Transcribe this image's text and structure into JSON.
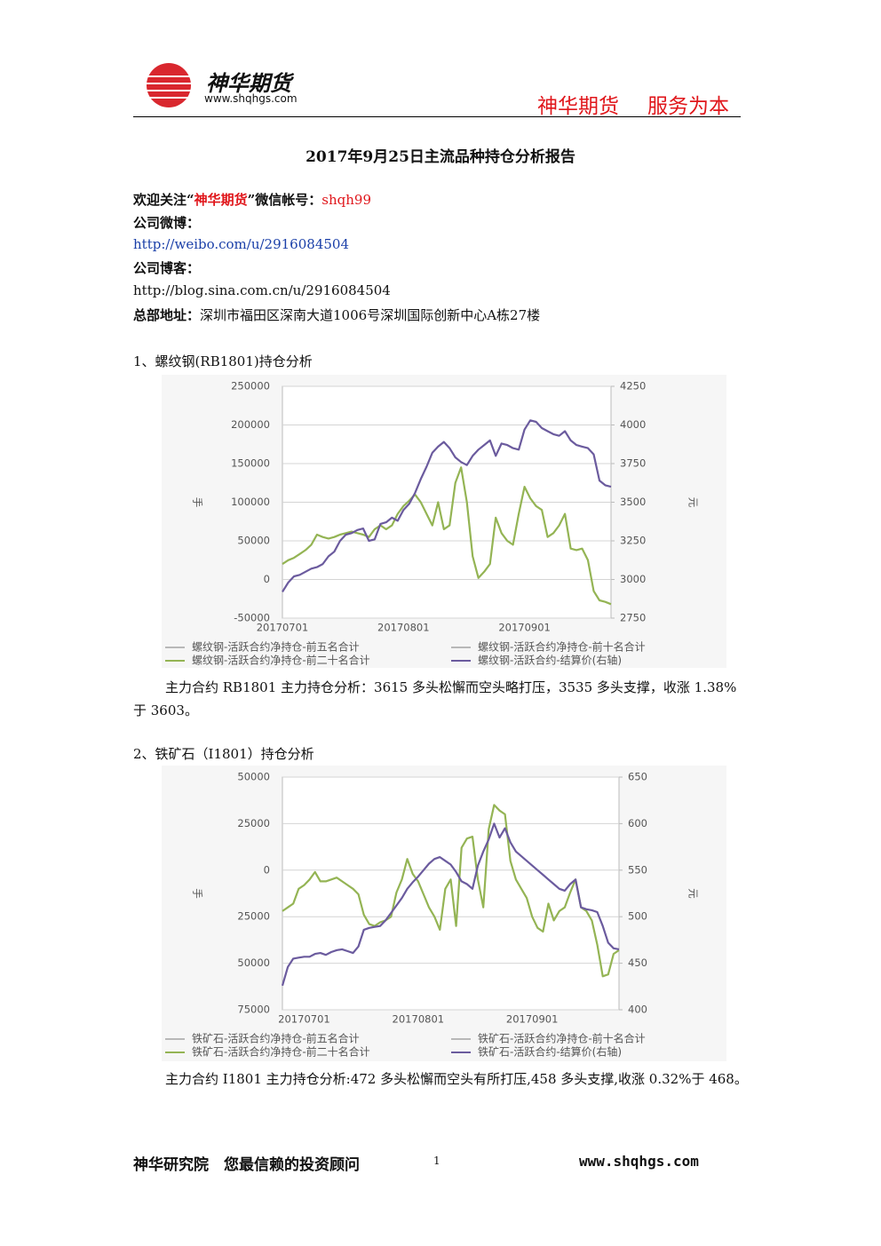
{
  "header": {
    "logo_name": "神华期货",
    "logo_url": "www.shqhgs.com",
    "slogan_left": "神华期货",
    "slogan_right": "服务为本"
  },
  "title": "2017年9月25日主流品种持仓分析报告",
  "contact": {
    "welcome_open": "欢迎关注“",
    "welcome_name": "神华期货",
    "welcome_close": "”微信帐号：",
    "wechat_id": "shqh99",
    "weibo_label": "公司微博：",
    "weibo_url": "http://weibo.com/u/2916084504",
    "blog_label": "公司博客：",
    "blog_url": "http://blog.sina.com.cn/u/2916084504",
    "address_label": "总部地址：",
    "address": "深圳市福田区深南大道1006号深圳国际创新中心A栋27楼"
  },
  "sections": [
    {
      "heading": "1、螺纹钢(RB1801)持仓分析",
      "analysis": "主力合约 RB1801 主力持仓分析：3615 多头松懈而空头略打压，3535 多头支撑，收涨 1.38%于 3603。"
    },
    {
      "heading": "2、铁矿石（I1801）持仓分析",
      "analysis": "主力合约 I1801 主力持仓分析:472 多头松懈而空头有所打压,458 多头支撑,收涨 0.32%于 468。"
    }
  ],
  "footer": {
    "left": "神华研究院　您最信赖的投资顾问",
    "page": "1",
    "right": "www.shqhgs.com"
  },
  "chart_data": [
    {
      "type": "line",
      "y_label": "手",
      "y2_label": "元",
      "grid": true,
      "legend": "bottom",
      "categories": [
        "20170701",
        null,
        null,
        null,
        null,
        null,
        null,
        null,
        null,
        null,
        null,
        null,
        null,
        null,
        null,
        null,
        null,
        null,
        null,
        null,
        null,
        "20170801",
        null,
        null,
        null,
        null,
        null,
        null,
        null,
        null,
        null,
        null,
        null,
        null,
        null,
        null,
        null,
        null,
        null,
        null,
        null,
        null,
        "20170901",
        null,
        null,
        null,
        null,
        null,
        null,
        null,
        null,
        null,
        null,
        null,
        null,
        null,
        null,
        null
      ],
      "ylim": [
        -50000,
        250000
      ],
      "yticks": [
        -50000,
        0,
        50000,
        100000,
        150000,
        200000,
        250000
      ],
      "y2lim": [
        2750,
        4250
      ],
      "y2ticks": [
        2750,
        3000,
        3250,
        3500,
        3750,
        4000,
        4250
      ],
      "series": [
        {
          "name": "螺纹钢-活跃合约净持仓-前五名合计",
          "color": "#b8b8b8",
          "values": [
            null,
            null,
            null,
            null,
            null,
            null,
            null,
            null,
            null,
            null,
            null,
            null,
            null,
            null,
            null,
            null,
            null,
            null,
            null,
            null,
            null,
            null,
            null,
            null,
            null,
            null,
            null,
            null,
            null,
            null,
            null,
            null,
            null,
            null,
            null,
            null,
            null,
            null,
            null,
            null,
            null,
            null,
            null,
            null,
            null,
            null,
            null,
            null,
            null,
            null,
            null,
            null,
            null,
            null,
            null,
            null,
            null,
            null
          ]
        },
        {
          "name": "螺纹钢-活跃合约净持仓-前十名合计",
          "color": "#b8b8b8",
          "values": [
            null,
            null,
            null,
            null,
            null,
            null,
            null,
            null,
            null,
            null,
            null,
            null,
            null,
            null,
            null,
            null,
            null,
            null,
            null,
            null,
            null,
            null,
            null,
            null,
            null,
            null,
            null,
            null,
            null,
            null,
            null,
            null,
            null,
            null,
            null,
            null,
            null,
            null,
            null,
            null,
            null,
            null,
            null,
            null,
            null,
            null,
            null,
            null,
            null,
            null,
            null,
            null,
            null,
            null,
            null,
            null,
            null,
            null
          ]
        },
        {
          "name": "螺纹钢-活跃合约净持仓-前二十名合计",
          "color": "#94b454",
          "values": [
            20000,
            25000,
            28000,
            33000,
            38000,
            45000,
            58000,
            55000,
            53000,
            55000,
            58000,
            60000,
            62000,
            60000,
            58000,
            55000,
            65000,
            70000,
            65000,
            70000,
            85000,
            95000,
            102000,
            110000,
            100000,
            85000,
            70000,
            100000,
            65000,
            70000,
            125000,
            145000,
            100000,
            30000,
            2000,
            10000,
            20000,
            80000,
            60000,
            50000,
            45000,
            85000,
            120000,
            105000,
            95000,
            90000,
            55000,
            60000,
            70000,
            85000,
            40000,
            38000,
            40000,
            25000,
            -15000,
            -27000,
            -29000,
            -32000
          ]
        },
        {
          "name": "螺纹钢-活跃合约-结算价(右轴)",
          "color": "#6b5b9e",
          "axis": "y2",
          "values": [
            2920,
            2980,
            3020,
            3030,
            3050,
            3070,
            3080,
            3100,
            3150,
            3180,
            3250,
            3290,
            3300,
            3320,
            3330,
            3250,
            3260,
            3360,
            3370,
            3400,
            3380,
            3450,
            3490,
            3560,
            3650,
            3730,
            3820,
            3860,
            3890,
            3850,
            3790,
            3760,
            3740,
            3800,
            3840,
            3870,
            3900,
            3800,
            3880,
            3870,
            3850,
            3840,
            3970,
            4030,
            4020,
            3980,
            3960,
            3940,
            3930,
            3960,
            3900,
            3870,
            3860,
            3850,
            3810,
            3640,
            3610,
            3600
          ]
        }
      ]
    },
    {
      "type": "line",
      "y_label": "手",
      "y2_label": "元",
      "grid": true,
      "legend": "bottom",
      "categories": [
        null,
        null,
        null,
        null,
        "20170701",
        null,
        null,
        null,
        null,
        null,
        null,
        null,
        null,
        null,
        null,
        null,
        null,
        null,
        null,
        null,
        null,
        null,
        null,
        null,
        null,
        "20170801",
        null,
        null,
        null,
        null,
        null,
        null,
        null,
        null,
        null,
        null,
        null,
        null,
        null,
        null,
        null,
        null,
        null,
        null,
        null,
        null,
        "20170901",
        null,
        null,
        null,
        null,
        null,
        null,
        null,
        null,
        null,
        null,
        null,
        null,
        null,
        null,
        null,
        null
      ],
      "ylim": [
        -75000,
        50000
      ],
      "yticks": [
        {
          "value": -75000,
          "label": "75000"
        },
        {
          "value": -50000,
          "label": "50000"
        },
        {
          "value": -25000,
          "label": "25000"
        },
        0,
        25000,
        50000
      ],
      "y2lim": [
        400,
        650
      ],
      "y2ticks": [
        400,
        450,
        500,
        550,
        600,
        650
      ],
      "series": [
        {
          "name": "铁矿石-活跃合约净持仓-前五名合计",
          "color": "#b8b8b8",
          "values": [
            null,
            null,
            null,
            null,
            null,
            null,
            null,
            null,
            null,
            null,
            null,
            null,
            null,
            null,
            null,
            null,
            null,
            null,
            null,
            null,
            null,
            null,
            null,
            null,
            null,
            null,
            null,
            null,
            null,
            null,
            null,
            null,
            null,
            null,
            null,
            null,
            null,
            null,
            null,
            null,
            null,
            null,
            null,
            null,
            null,
            null,
            null,
            null,
            null,
            null,
            null,
            null,
            null,
            null,
            null,
            null,
            null,
            null,
            null,
            null,
            null,
            null,
            null
          ]
        },
        {
          "name": "铁矿石-活跃合约净持仓-前十名合计",
          "color": "#b8b8b8",
          "values": [
            null,
            null,
            null,
            null,
            null,
            null,
            null,
            null,
            null,
            null,
            null,
            null,
            null,
            null,
            null,
            null,
            null,
            null,
            null,
            null,
            null,
            null,
            null,
            null,
            null,
            null,
            null,
            null,
            null,
            null,
            null,
            null,
            null,
            null,
            null,
            null,
            null,
            null,
            null,
            null,
            null,
            null,
            null,
            null,
            null,
            null,
            null,
            null,
            null,
            null,
            null,
            null,
            null,
            null,
            null,
            null,
            null,
            null,
            null,
            null,
            null,
            null,
            null
          ]
        },
        {
          "name": "铁矿石-活跃合约净持仓-前二十名合计",
          "color": "#94b454",
          "values": [
            -22000,
            -20000,
            -18000,
            -10000,
            -8000,
            -5000,
            -1000,
            -6000,
            -6000,
            -5000,
            -4000,
            -6000,
            -8000,
            -10000,
            -13000,
            -24000,
            -29000,
            -30000,
            -28000,
            -27000,
            -25000,
            -12000,
            -5000,
            6000,
            -2000,
            -6000,
            -13000,
            -20000,
            -25000,
            -32000,
            -10000,
            -5000,
            -30000,
            12000,
            17000,
            18000,
            -5000,
            -20000,
            22000,
            35000,
            32000,
            30000,
            5000,
            -5000,
            -10000,
            -15000,
            -25000,
            -31000,
            -33000,
            -18000,
            -27000,
            -22000,
            -20000,
            -12000,
            -5000,
            -20000,
            -22000,
            -27000,
            -40000,
            -57000,
            -56000,
            -45000,
            -43000
          ]
        },
        {
          "name": "铁矿石-活跃合约-结算价(右轴)",
          "color": "#6b5b9e",
          "axis": "y2",
          "values": [
            426,
            446,
            455,
            456,
            457,
            457,
            460,
            461,
            459,
            462,
            464,
            465,
            463,
            461,
            468,
            486,
            488,
            489,
            490,
            496,
            504,
            512,
            520,
            530,
            537,
            543,
            550,
            557,
            562,
            564,
            560,
            556,
            548,
            538,
            535,
            530,
            555,
            570,
            583,
            600,
            585,
            595,
            580,
            570,
            565,
            560,
            555,
            550,
            545,
            540,
            535,
            530,
            528,
            535,
            540,
            510,
            508,
            507,
            505,
            490,
            472,
            466,
            465
          ]
        }
      ]
    }
  ]
}
